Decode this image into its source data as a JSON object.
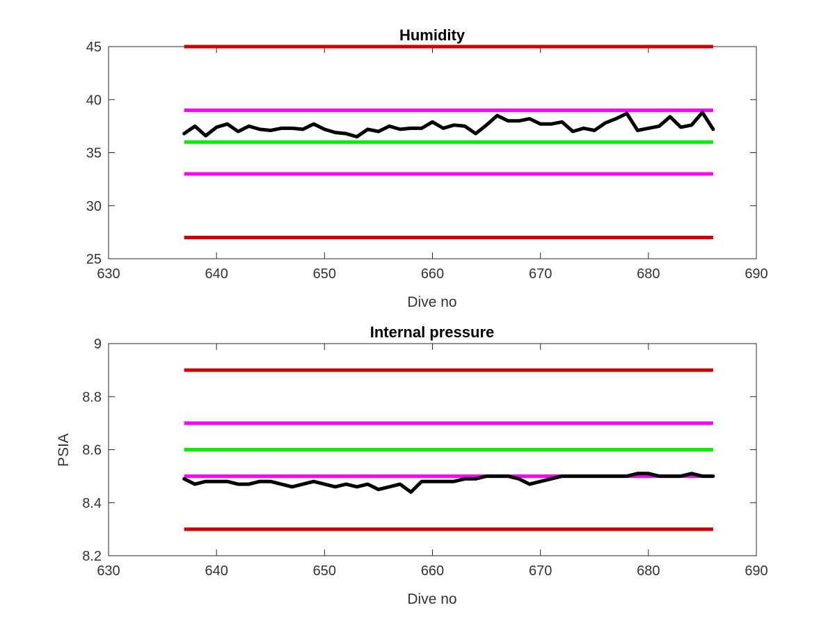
{
  "chart_data": [
    {
      "type": "line",
      "title": "Humidity",
      "xlabel": "Dive no",
      "ylabel": "",
      "xlim": [
        630,
        690
      ],
      "ylim": [
        25,
        45
      ],
      "xticks": [
        630,
        640,
        650,
        660,
        670,
        680,
        690
      ],
      "yticks": [
        25,
        30,
        35,
        40,
        45
      ],
      "xtick_labels": [
        "630",
        "640",
        "650",
        "660",
        "670",
        "680",
        "690"
      ],
      "ytick_labels": [
        "25",
        "30",
        "35",
        "40",
        "45"
      ],
      "grid": false,
      "reference_lines": [
        {
          "y": 45,
          "x": [
            637,
            686
          ],
          "color": "#cc0000"
        },
        {
          "y": 39,
          "x": [
            637,
            686
          ],
          "color": "#ff00ff"
        },
        {
          "y": 36,
          "x": [
            637,
            686
          ],
          "color": "#00ee00"
        },
        {
          "y": 33,
          "x": [
            637,
            686
          ],
          "color": "#ff00ff"
        },
        {
          "y": 27,
          "x": [
            637,
            686
          ],
          "color": "#cc0000"
        }
      ],
      "series": [
        {
          "color": "#000000",
          "x": [
            637,
            638,
            639,
            640,
            641,
            642,
            643,
            644,
            645,
            646,
            647,
            648,
            649,
            650,
            651,
            652,
            653,
            654,
            655,
            656,
            657,
            658,
            659,
            660,
            661,
            662,
            663,
            664,
            665,
            666,
            667,
            668,
            669,
            670,
            671,
            672,
            673,
            674,
            675,
            676,
            677,
            678,
            679,
            680,
            681,
            682,
            683,
            684,
            685,
            686
          ],
          "values": [
            36.8,
            37.5,
            36.6,
            37.4,
            37.7,
            37.0,
            37.5,
            37.2,
            37.1,
            37.3,
            37.3,
            37.2,
            37.7,
            37.2,
            36.9,
            36.8,
            36.5,
            37.2,
            37.0,
            37.5,
            37.2,
            37.3,
            37.3,
            37.9,
            37.3,
            37.6,
            37.5,
            36.8,
            37.6,
            38.5,
            38.0,
            38.0,
            38.2,
            37.7,
            37.7,
            37.9,
            37.0,
            37.3,
            37.1,
            37.8,
            38.2,
            38.7,
            37.1,
            37.3,
            37.5,
            38.4,
            37.4,
            37.6,
            38.8,
            37.2
          ]
        }
      ]
    },
    {
      "type": "line",
      "title": "Internal pressure",
      "xlabel": "Dive no",
      "ylabel": "PSIA",
      "xlim": [
        630,
        690
      ],
      "ylim": [
        8.2,
        9.0
      ],
      "xticks": [
        630,
        640,
        650,
        660,
        670,
        680,
        690
      ],
      "yticks": [
        8.2,
        8.4,
        8.6,
        8.8,
        9.0
      ],
      "xtick_labels": [
        "630",
        "640",
        "650",
        "660",
        "670",
        "680",
        "690"
      ],
      "ytick_labels": [
        "8.2",
        "8.4",
        "8.6",
        "8.8",
        "9"
      ],
      "grid": false,
      "reference_lines": [
        {
          "y": 8.9,
          "x": [
            637,
            686
          ],
          "color": "#cc0000"
        },
        {
          "y": 8.7,
          "x": [
            637,
            686
          ],
          "color": "#ff00ff"
        },
        {
          "y": 8.6,
          "x": [
            637,
            686
          ],
          "color": "#00ee00"
        },
        {
          "y": 8.5,
          "x": [
            637,
            686
          ],
          "color": "#ff00ff"
        },
        {
          "y": 8.3,
          "x": [
            637,
            686
          ],
          "color": "#cc0000"
        }
      ],
      "series": [
        {
          "color": "#000000",
          "x": [
            637,
            638,
            639,
            640,
            641,
            642,
            643,
            644,
            645,
            646,
            647,
            648,
            649,
            650,
            651,
            652,
            653,
            654,
            655,
            656,
            657,
            658,
            659,
            660,
            661,
            662,
            663,
            664,
            665,
            666,
            667,
            668,
            669,
            670,
            671,
            672,
            673,
            674,
            675,
            676,
            677,
            678,
            679,
            680,
            681,
            682,
            683,
            684,
            685,
            686
          ],
          "values": [
            8.49,
            8.47,
            8.48,
            8.48,
            8.48,
            8.47,
            8.47,
            8.48,
            8.48,
            8.47,
            8.46,
            8.47,
            8.48,
            8.47,
            8.46,
            8.47,
            8.46,
            8.47,
            8.45,
            8.46,
            8.47,
            8.44,
            8.48,
            8.48,
            8.48,
            8.48,
            8.49,
            8.49,
            8.5,
            8.5,
            8.5,
            8.49,
            8.47,
            8.48,
            8.49,
            8.5,
            8.5,
            8.5,
            8.5,
            8.5,
            8.5,
            8.5,
            8.51,
            8.51,
            8.5,
            8.5,
            8.5,
            8.51,
            8.5,
            8.5
          ]
        }
      ]
    }
  ]
}
